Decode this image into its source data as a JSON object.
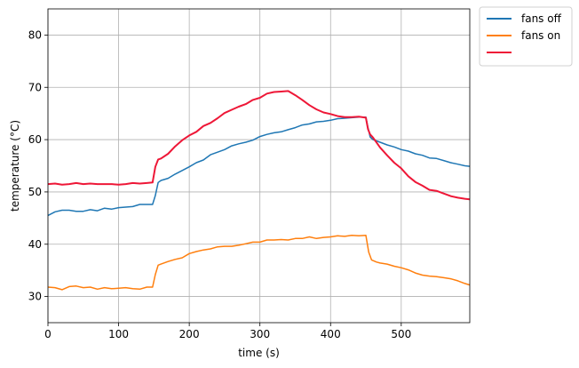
{
  "chart_data": {
    "type": "line",
    "xlabel": "time (s)",
    "ylabel": "temperature (°C)",
    "xlim": [
      0,
      597
    ],
    "ylim": [
      25,
      85
    ],
    "xticks": [
      0,
      100,
      200,
      300,
      400,
      500
    ],
    "yticks": [
      30,
      40,
      50,
      60,
      70,
      80
    ],
    "grid": true,
    "legend_position": "outside-top-right",
    "series": [
      {
        "name": "fans off",
        "color": "#1f77b4",
        "points": [
          [
            0,
            45.5
          ],
          [
            10,
            46.2
          ],
          [
            20,
            46.5
          ],
          [
            30,
            46.5
          ],
          [
            40,
            46.3
          ],
          [
            50,
            46.3
          ],
          [
            60,
            46.6
          ],
          [
            70,
            46.4
          ],
          [
            80,
            46.9
          ],
          [
            90,
            46.7
          ],
          [
            100,
            47
          ],
          [
            110,
            47.1
          ],
          [
            120,
            47.2
          ],
          [
            130,
            47.6
          ],
          [
            140,
            47.6
          ],
          [
            148,
            47.6
          ],
          [
            152,
            49.3
          ],
          [
            156,
            51.8
          ],
          [
            160,
            52.2
          ],
          [
            170,
            52.6
          ],
          [
            180,
            53.4
          ],
          [
            190,
            54.1
          ],
          [
            200,
            54.8
          ],
          [
            210,
            55.6
          ],
          [
            220,
            56.1
          ],
          [
            230,
            57.1
          ],
          [
            240,
            57.6
          ],
          [
            250,
            58.1
          ],
          [
            260,
            58.8
          ],
          [
            270,
            59.2
          ],
          [
            280,
            59.5
          ],
          [
            290,
            59.9
          ],
          [
            300,
            60.6
          ],
          [
            310,
            61
          ],
          [
            320,
            61.3
          ],
          [
            330,
            61.5
          ],
          [
            340,
            61.9
          ],
          [
            350,
            62.3
          ],
          [
            360,
            62.8
          ],
          [
            370,
            63
          ],
          [
            380,
            63.4
          ],
          [
            390,
            63.5
          ],
          [
            400,
            63.7
          ],
          [
            410,
            64
          ],
          [
            420,
            64.1
          ],
          [
            430,
            64.2
          ],
          [
            440,
            64.3
          ],
          [
            450,
            64.3
          ],
          [
            453,
            62.3
          ],
          [
            456,
            60.5
          ],
          [
            460,
            60
          ],
          [
            470,
            59.5
          ],
          [
            480,
            59
          ],
          [
            490,
            58.6
          ],
          [
            500,
            58.1
          ],
          [
            510,
            57.8
          ],
          [
            520,
            57.3
          ],
          [
            530,
            57
          ],
          [
            540,
            56.5
          ],
          [
            550,
            56.4
          ],
          [
            560,
            56
          ],
          [
            570,
            55.6
          ],
          [
            580,
            55.3
          ],
          [
            590,
            55
          ],
          [
            597,
            54.9
          ]
        ]
      },
      {
        "name": "fans on",
        "color": "#ff7f0e",
        "points": [
          [
            0,
            31.8
          ],
          [
            10,
            31.7
          ],
          [
            20,
            31.3
          ],
          [
            30,
            31.9
          ],
          [
            40,
            32
          ],
          [
            50,
            31.7
          ],
          [
            60,
            31.8
          ],
          [
            70,
            31.4
          ],
          [
            80,
            31.7
          ],
          [
            90,
            31.5
          ],
          [
            100,
            31.6
          ],
          [
            110,
            31.7
          ],
          [
            120,
            31.5
          ],
          [
            130,
            31.4
          ],
          [
            140,
            31.8
          ],
          [
            148,
            31.8
          ],
          [
            152,
            34.2
          ],
          [
            156,
            36
          ],
          [
            160,
            36.2
          ],
          [
            170,
            36.7
          ],
          [
            180,
            37.1
          ],
          [
            190,
            37.4
          ],
          [
            200,
            38.2
          ],
          [
            210,
            38.6
          ],
          [
            220,
            38.9
          ],
          [
            230,
            39.1
          ],
          [
            240,
            39.5
          ],
          [
            250,
            39.6
          ],
          [
            260,
            39.6
          ],
          [
            270,
            39.8
          ],
          [
            280,
            40.1
          ],
          [
            290,
            40.4
          ],
          [
            300,
            40.4
          ],
          [
            310,
            40.8
          ],
          [
            320,
            40.8
          ],
          [
            330,
            40.9
          ],
          [
            340,
            40.8
          ],
          [
            350,
            41.1
          ],
          [
            360,
            41.1
          ],
          [
            370,
            41.4
          ],
          [
            380,
            41.1
          ],
          [
            390,
            41.3
          ],
          [
            400,
            41.4
          ],
          [
            410,
            41.6
          ],
          [
            420,
            41.5
          ],
          [
            430,
            41.7
          ],
          [
            440,
            41.6
          ],
          [
            450,
            41.7
          ],
          [
            454,
            38.5
          ],
          [
            458,
            37
          ],
          [
            465,
            36.6
          ],
          [
            470,
            36.4
          ],
          [
            480,
            36.2
          ],
          [
            490,
            35.8
          ],
          [
            500,
            35.5
          ],
          [
            510,
            35.1
          ],
          [
            520,
            34.5
          ],
          [
            530,
            34.1
          ],
          [
            540,
            33.9
          ],
          [
            550,
            33.8
          ],
          [
            560,
            33.6
          ],
          [
            570,
            33.4
          ],
          [
            580,
            33
          ],
          [
            590,
            32.5
          ],
          [
            597,
            32.2
          ]
        ]
      },
      {
        "name": "",
        "color": "#ee1737",
        "points": [
          [
            0,
            51.5
          ],
          [
            10,
            51.6
          ],
          [
            20,
            51.4
          ],
          [
            30,
            51.5
          ],
          [
            40,
            51.7
          ],
          [
            50,
            51.5
          ],
          [
            60,
            51.6
          ],
          [
            70,
            51.5
          ],
          [
            80,
            51.5
          ],
          [
            90,
            51.5
          ],
          [
            100,
            51.4
          ],
          [
            110,
            51.5
          ],
          [
            120,
            51.7
          ],
          [
            130,
            51.6
          ],
          [
            140,
            51.7
          ],
          [
            148,
            51.8
          ],
          [
            152,
            54.8
          ],
          [
            156,
            56.2
          ],
          [
            160,
            56.4
          ],
          [
            170,
            57.3
          ],
          [
            180,
            58.7
          ],
          [
            190,
            59.9
          ],
          [
            200,
            60.8
          ],
          [
            210,
            61.5
          ],
          [
            220,
            62.6
          ],
          [
            230,
            63.2
          ],
          [
            240,
            64.1
          ],
          [
            250,
            65.1
          ],
          [
            260,
            65.7
          ],
          [
            270,
            66.3
          ],
          [
            280,
            66.8
          ],
          [
            290,
            67.6
          ],
          [
            300,
            68
          ],
          [
            310,
            68.8
          ],
          [
            320,
            69.1
          ],
          [
            330,
            69.2
          ],
          [
            340,
            69.3
          ],
          [
            350,
            68.5
          ],
          [
            360,
            67.6
          ],
          [
            370,
            66.6
          ],
          [
            380,
            65.8
          ],
          [
            390,
            65.2
          ],
          [
            400,
            64.9
          ],
          [
            410,
            64.5
          ],
          [
            420,
            64.3
          ],
          [
            430,
            64.3
          ],
          [
            440,
            64.4
          ],
          [
            450,
            64.2
          ],
          [
            453,
            62
          ],
          [
            456,
            61
          ],
          [
            460,
            60.4
          ],
          [
            470,
            58.5
          ],
          [
            480,
            57
          ],
          [
            490,
            55.6
          ],
          [
            500,
            54.5
          ],
          [
            510,
            53
          ],
          [
            520,
            51.9
          ],
          [
            530,
            51.2
          ],
          [
            540,
            50.4
          ],
          [
            550,
            50.2
          ],
          [
            560,
            49.7
          ],
          [
            570,
            49.2
          ],
          [
            580,
            48.9
          ],
          [
            590,
            48.7
          ],
          [
            597,
            48.6
          ]
        ]
      }
    ]
  }
}
